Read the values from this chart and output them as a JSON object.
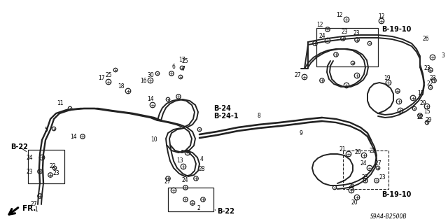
{
  "bg_color": "#ffffff",
  "line_color": "#222222",
  "text_color": "#000000",
  "diagram_id": "S9A4-B2500B",
  "figsize": [
    6.4,
    3.2
  ],
  "dpi": 100,
  "labels": {
    "B22_left": "B-22",
    "B22_bottom": "B-22",
    "B24": "B-24",
    "B241": "B-24-1",
    "B1910_top": "B-19-10",
    "B1910_bottom": "B-19-10",
    "FR": "FR."
  },
  "pipe_lw": 1.4,
  "comp_size": 5.5
}
